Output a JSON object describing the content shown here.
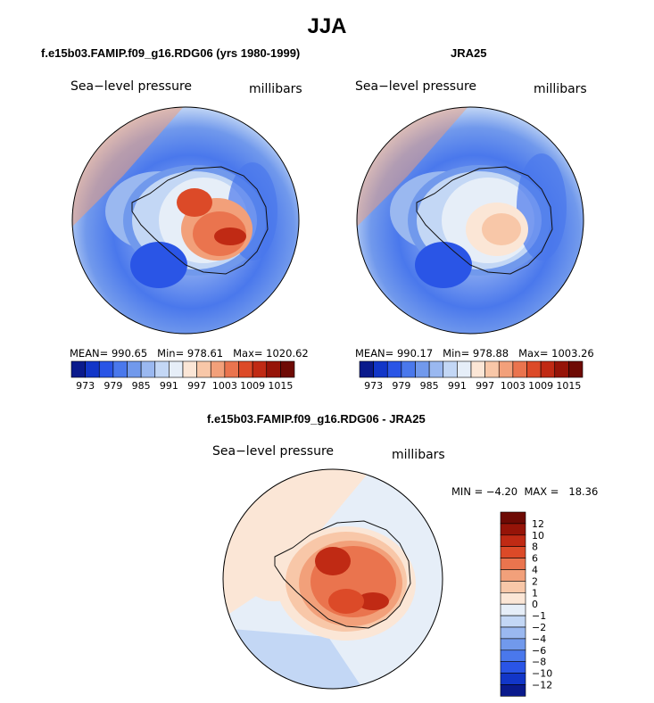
{
  "title": "JJA",
  "panels": [
    {
      "title": "f.e15b03.FAMIP.f09_g16.RDG06 (yrs 1980-1999)",
      "variable": "Sea−level pressure",
      "units": "millibars",
      "stats": {
        "mean_label": "MEAN=",
        "mean": "990.65",
        "min_label": "Min=",
        "min": "978.61",
        "max_label": "Max=",
        "max": "1020.62"
      }
    },
    {
      "title": "JRA25",
      "variable": "Sea−level pressure",
      "units": "millibars",
      "stats": {
        "mean_label": "MEAN=",
        "mean": "990.17",
        "min_label": "Min=",
        "min": "978.88",
        "max_label": "Max=",
        "max": "1003.26"
      }
    },
    {
      "title": "f.e15b03.FAMIP.f09_g16.RDG06 - JRA25",
      "variable": "Sea−level pressure",
      "units": "millibars",
      "stats": {
        "min_label": "MIN =",
        "min": "−4.20",
        "max_label": "MAX =",
        "max": "18.36"
      }
    }
  ],
  "chart_data": [
    {
      "type": "heatmap",
      "projection": "south polar stereographic",
      "title": "f.e15b03.FAMIP.f09_g16.RDG06 (yrs 1980-1999)",
      "variable": "Sea−level pressure",
      "units": "millibars",
      "mean": 990.65,
      "min": 978.61,
      "max": 1020.62,
      "colorbar": {
        "orientation": "horizontal",
        "levels": [
          973,
          976,
          979,
          982,
          985,
          988,
          991,
          994,
          997,
          1000,
          1003,
          1006,
          1009,
          1012,
          1015
        ],
        "tick_labels": [
          "973",
          "979",
          "985",
          "991",
          "997",
          "1003",
          "1009",
          "1015"
        ],
        "colors": [
          "#0a1a8c",
          "#1236c8",
          "#2a55e6",
          "#4a78ec",
          "#7199ec",
          "#9ab8f0",
          "#c3d7f5",
          "#e6eef8",
          "#fbe6d6",
          "#f8c7a8",
          "#f2a07a",
          "#ea744e",
          "#dc4a28",
          "#c02a14",
          "#961408",
          "#6e0a04"
        ]
      }
    },
    {
      "type": "heatmap",
      "projection": "south polar stereographic",
      "title": "JRA25",
      "variable": "Sea−level pressure",
      "units": "millibars",
      "mean": 990.17,
      "min": 978.88,
      "max": 1003.26,
      "colorbar": {
        "orientation": "horizontal",
        "levels": [
          973,
          976,
          979,
          982,
          985,
          988,
          991,
          994,
          997,
          1000,
          1003,
          1006,
          1009,
          1012,
          1015
        ],
        "tick_labels": [
          "973",
          "979",
          "985",
          "991",
          "997",
          "1003",
          "1009",
          "1015"
        ],
        "colors": [
          "#0a1a8c",
          "#1236c8",
          "#2a55e6",
          "#4a78ec",
          "#7199ec",
          "#9ab8f0",
          "#c3d7f5",
          "#e6eef8",
          "#fbe6d6",
          "#f8c7a8",
          "#f2a07a",
          "#ea744e",
          "#dc4a28",
          "#c02a14",
          "#961408",
          "#6e0a04"
        ]
      }
    },
    {
      "type": "heatmap",
      "projection": "south polar stereographic",
      "title": "f.e15b03.FAMIP.f09_g16.RDG06 - JRA25",
      "variable": "Sea−level pressure",
      "units": "millibars",
      "min": -4.2,
      "max": 18.36,
      "colorbar": {
        "orientation": "vertical",
        "levels": [
          -12,
          -10,
          -8,
          -6,
          -4,
          -2,
          -1,
          0,
          1,
          2,
          4,
          6,
          8,
          10,
          12
        ],
        "tick_labels": [
          "12",
          "10",
          "8",
          "6",
          "4",
          "2",
          "1",
          "0",
          "−1",
          "−2",
          "−4",
          "−6",
          "−8",
          "−10",
          "−12"
        ],
        "colors": [
          "#0a1a8c",
          "#1236c8",
          "#2a55e6",
          "#4a78ec",
          "#7199ec",
          "#9ab8f0",
          "#c3d7f5",
          "#e6eef8",
          "#fbe6d6",
          "#f8c7a8",
          "#f2a07a",
          "#ea744e",
          "#dc4a28",
          "#c02a14",
          "#961408",
          "#6e0a04"
        ]
      }
    }
  ]
}
